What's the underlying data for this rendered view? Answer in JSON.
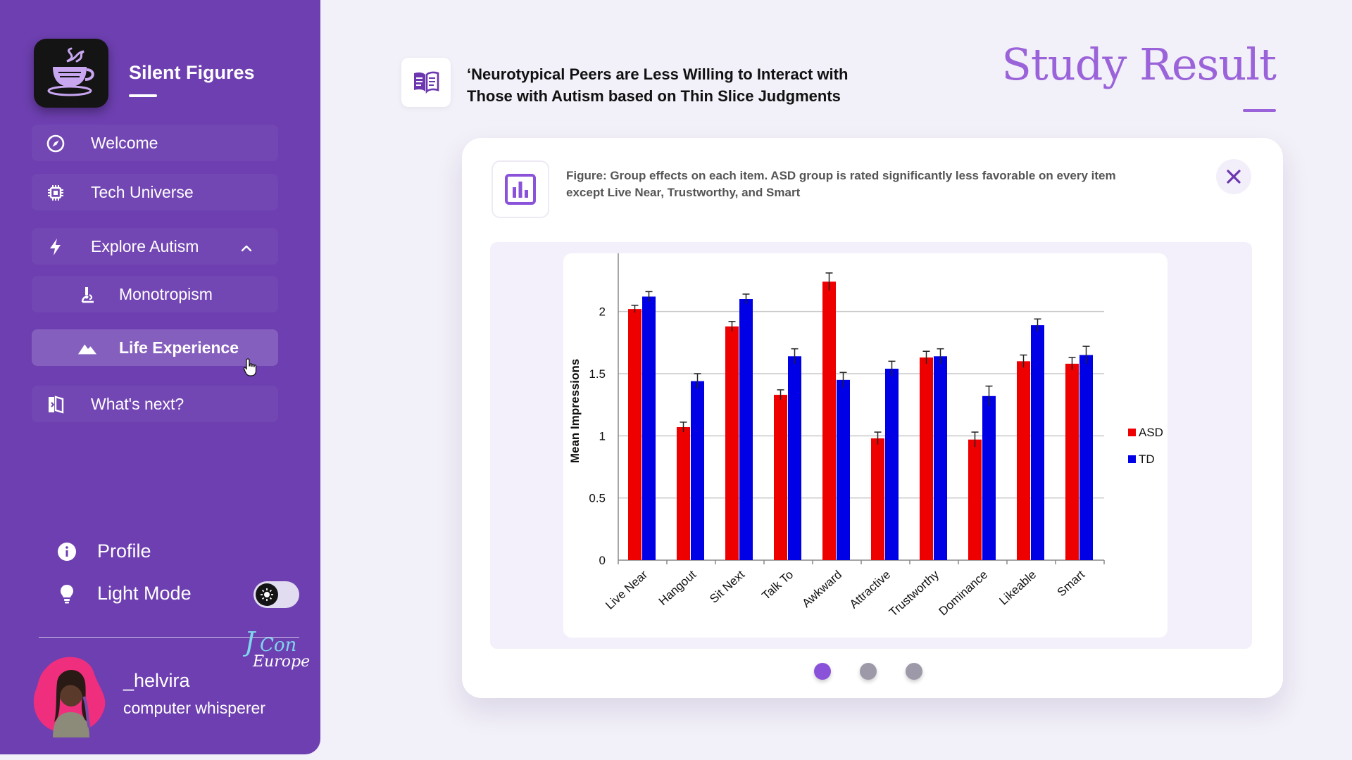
{
  "sidebar": {
    "brand": "Silent Figures",
    "nav": {
      "welcome": "Welcome",
      "tech_universe": "Tech Universe",
      "explore_autism": "Explore Autism",
      "monotropism": "Monotropism",
      "life_experience": "Life Experience",
      "whats_next": "What's next?"
    },
    "profile": "Profile",
    "light_mode": "Light Mode",
    "user": {
      "name": "_helvira",
      "role": "computer whisperer"
    },
    "logo_text": "JCon Europe"
  },
  "header": {
    "paper_title": "‘Neurotypical Peers are Less Willing to Interact with Those with Autism based on Thin Slice Judgments",
    "page_title": "Study Result"
  },
  "card": {
    "caption": "Figure: Group effects on each item. ASD group is rated significantly less favorable on every item except Live Near, Trustworthy, and Smart",
    "slides": 3,
    "active_slide": 1
  },
  "colors": {
    "sidebar": "#6d3fb0",
    "accent": "#9b63d9",
    "asd": "#ee0000",
    "td": "#0000e6"
  },
  "chart_data": {
    "type": "bar",
    "title": "",
    "xlabel": "",
    "ylabel": "Mean Impressions",
    "ylim": [
      0,
      2.4
    ],
    "yticks": [
      "0",
      "0.5",
      "1",
      "1.5",
      "2"
    ],
    "grid": true,
    "legend": "right",
    "categories": [
      "Live Near",
      "Hangout",
      "Sit Next",
      "Talk To",
      "Awkward",
      "Attractive",
      "Trustworthy",
      "Dominance",
      "Likeable",
      "Smart"
    ],
    "series": [
      {
        "name": "ASD",
        "color": "#ee0000",
        "values": [
          2.02,
          1.07,
          1.88,
          1.33,
          2.24,
          0.98,
          1.63,
          0.97,
          1.6,
          1.58
        ],
        "errors": [
          0.03,
          0.04,
          0.04,
          0.04,
          0.07,
          0.05,
          0.05,
          0.06,
          0.05,
          0.05
        ]
      },
      {
        "name": "TD",
        "color": "#0000e6",
        "values": [
          2.12,
          1.44,
          2.1,
          1.64,
          1.45,
          1.54,
          1.64,
          1.32,
          1.89,
          1.65
        ],
        "errors": [
          0.04,
          0.06,
          0.04,
          0.06,
          0.06,
          0.06,
          0.06,
          0.08,
          0.05,
          0.07
        ]
      }
    ]
  }
}
